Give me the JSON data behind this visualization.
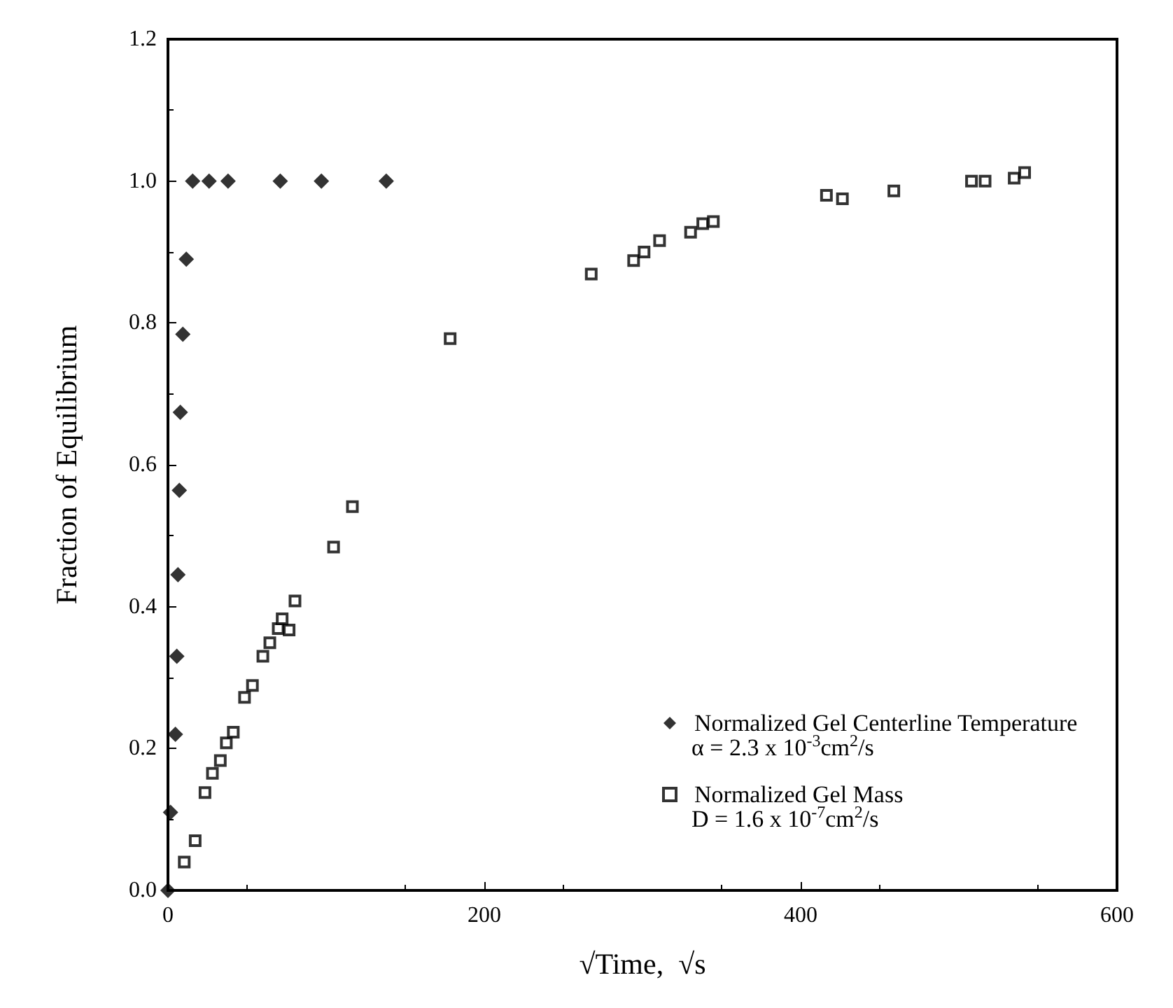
{
  "chart_data": {
    "type": "scatter",
    "xlabel": "√Time,  √s",
    "ylabel": "Fraction of Equilibrium",
    "xlim": [
      0,
      600
    ],
    "xticks": [
      0,
      200,
      400,
      600
    ],
    "ylim": [
      0,
      1.2
    ],
    "yticks": [
      {
        "value": 0,
        "label": "0.0"
      },
      {
        "value": 0.2,
        "label": "0.2"
      },
      {
        "value": 0.4,
        "label": "0.4"
      },
      {
        "value": 0.6,
        "label": "0.6"
      },
      {
        "value": 0.8,
        "label": "0.8"
      },
      {
        "value": 1,
        "label": "1.0"
      },
      {
        "value": 1.2,
        "label": "1.2"
      }
    ],
    "grid": false,
    "legend": "bottom right",
    "annotations": [
      "α = 2.3 x 10$^{-3}$cm$^{2}$/s",
      "D = 1.6 x 10$^{-7}$cm$^{2}$/s"
    ],
    "series": [
      {
        "name": "Normalized Gel Centerline Temperature",
        "color": "#000000",
        "marker": "diamond",
        "x": [
          0,
          1.6,
          4.7,
          5.6,
          6.3,
          7.2,
          7.8,
          9.4,
          11.6,
          15.6,
          26,
          38,
          71,
          97,
          138
        ],
        "values": [
          0,
          0.11,
          0.22,
          0.33,
          0.445,
          0.564,
          0.674,
          0.784,
          0.89,
          1.0,
          1.0,
          1.0,
          1.0,
          1.0,
          1.0
        ]
      },
      {
        "name": "Normalized Gel Mass",
        "color": "#000000",
        "marker": "square",
        "x": [
          10.3,
          17.2,
          23.4,
          28.1,
          33.1,
          36.9,
          41.3,
          48.4,
          53.4,
          60,
          64.4,
          69.7,
          72.2,
          76.6,
          80.3,
          104.7,
          116.6,
          178.4,
          267.6,
          294.4,
          301,
          310.8,
          330.4,
          338.1,
          344.8,
          416.3,
          426.4,
          458.9,
          508,
          516.6,
          535,
          541.6
        ],
        "values": [
          0.04,
          0.07,
          0.138,
          0.165,
          0.183,
          0.208,
          0.223,
          0.272,
          0.289,
          0.33,
          0.349,
          0.369,
          0.383,
          0.367,
          0.408,
          0.484,
          0.541,
          0.778,
          0.869,
          0.888,
          0.9,
          0.916,
          0.928,
          0.94,
          0.943,
          0.98,
          0.975,
          0.986,
          1.0,
          1.0,
          1.004,
          1.012
        ]
      }
    ]
  }
}
